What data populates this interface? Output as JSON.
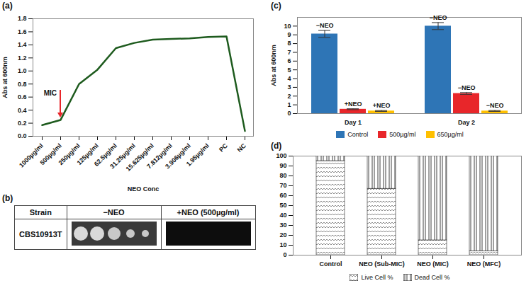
{
  "chart_data": [
    {
      "panel": "(a)",
      "type": "line",
      "x_label": "NEO Conc",
      "y_label": "Abs at 600nm",
      "categories": [
        "1000µg/ml",
        "500µg/ml",
        "250µg/ml",
        "125µg/ml",
        "62.5µg/ml",
        "31.25µg/ml",
        "15.625µg/ml",
        "7.812µg/ml",
        "3.906µg/ml",
        "1.95µg/ml",
        "PC",
        "NC"
      ],
      "values": [
        0.17,
        0.25,
        0.8,
        1.02,
        1.35,
        1.43,
        1.48,
        1.49,
        1.5,
        1.52,
        1.53,
        0.08
      ],
      "color": "#1e5b1e",
      "ylim": [
        0,
        1.8
      ],
      "yticks": [
        0,
        0.2,
        0.4,
        0.6,
        0.8,
        1,
        1.2,
        1.4,
        1.6,
        1.8
      ],
      "grid": false,
      "annotations": [
        {
          "text": "MIC",
          "category": "500µg/ml",
          "color": "#e8262a"
        }
      ]
    },
    {
      "panel": "(c)",
      "type": "bar",
      "y_label": "Abs at 600nm",
      "categories": [
        "Day 1",
        "Day 2"
      ],
      "series": [
        {
          "name": "Control",
          "color": "#2e75b6",
          "values": [
            9.1,
            10.0
          ],
          "errors": [
            0.4,
            0.4
          ],
          "labels": [
            "−NEO",
            "−NEO"
          ]
        },
        {
          "name": "500µg/ml",
          "color": "#e8262a",
          "values": [
            0.5,
            2.3
          ],
          "errors": [
            0.05,
            0.1
          ],
          "labels": [
            "+NEO",
            "−NEO"
          ]
        },
        {
          "name": "650µg/ml",
          "color": "#ffc000",
          "values": [
            0.3,
            0.3
          ],
          "errors": [
            0.05,
            0.05
          ],
          "labels": [
            "+NEO",
            "−NEO"
          ]
        }
      ],
      "ylim": [
        0,
        11
      ],
      "yticks": [
        0,
        1,
        2,
        3,
        4,
        5,
        6,
        7,
        8,
        9,
        10
      ],
      "grid": false,
      "legend": "bottom"
    },
    {
      "panel": "(d)",
      "type": "bar",
      "stacked": true,
      "categories": [
        "Control",
        "NEO (Sub-MIC)",
        "NEO (MIC)",
        "NEO (MFC)"
      ],
      "series": [
        {
          "name": "Live Cell %",
          "color": "#7f7f7f",
          "line_style": "zigzag",
          "values": [
            95,
            67,
            15,
            4
          ]
        },
        {
          "name": "Dead Cell %",
          "color": "#404040",
          "line_style": "vertical",
          "values": [
            5,
            33,
            85,
            96
          ]
        }
      ],
      "ylim": [
        0,
        100
      ],
      "yticks": [
        0,
        10,
        20,
        30,
        40,
        50,
        60,
        70,
        80,
        90,
        100
      ],
      "grid": false,
      "legend": "bottom"
    }
  ],
  "table": {
    "panel": "(b)",
    "header": [
      "Strain",
      "−NEO",
      "+NEO (500µg/ml)"
    ],
    "rows": [
      [
        "CBS10913T"
      ]
    ]
  }
}
